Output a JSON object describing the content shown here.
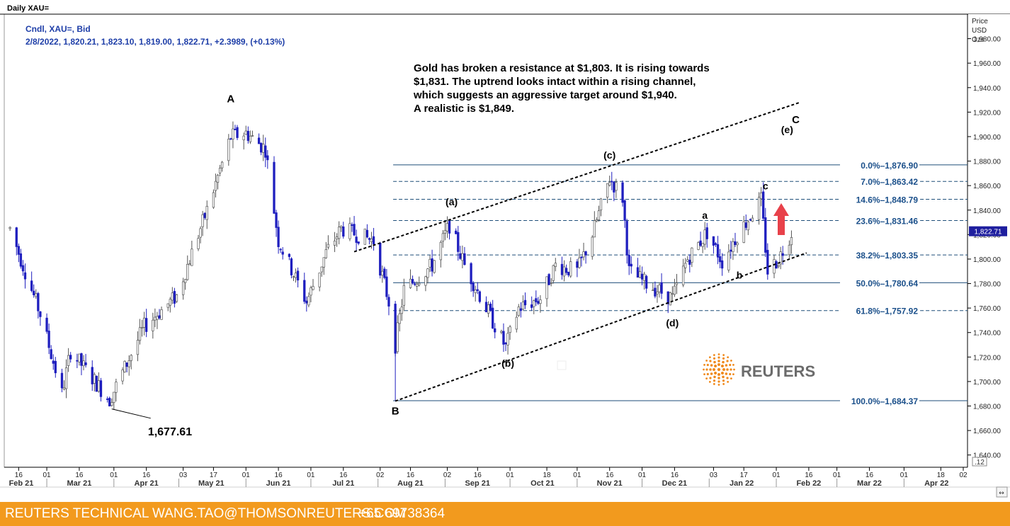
{
  "window_title": "Daily XAU=",
  "instrument_line": "Cndl, XAU=, Bid",
  "ohlc_line": "2/8/2022, 1,820.21, 1,823.10, 1,819.00, 1,822.71, +2.3989, (+0.13%)",
  "commentary": [
    "Gold has broken a resistance at $1,803. It is rising towards",
    "$1,831. The uptrend looks intact within a rising channel,",
    "which suggests an aggressive target around $1,940.",
    "A realistic is $1,849."
  ],
  "price_axis_title": [
    "Price",
    "USD",
    "Ozs"
  ],
  "price_ticks": [
    "1,980.00",
    "1,960.00",
    "1,940.00",
    "1,920.00",
    "1,900.00",
    "1,880.00",
    "1,860.00",
    "1,840.00",
    "1,820.00",
    "1,800.00",
    "1,780.00",
    "1,760.00",
    "1,740.00",
    "1,720.00",
    "1,700.00",
    "1,680.00",
    "1,660.00",
    "1,640.00"
  ],
  "last_price_tag": "1,822.71",
  "x_day_ticks": [
    "16",
    "01",
    "16",
    "01",
    "16",
    "03",
    "17",
    "01",
    "16",
    "01",
    "16",
    "02",
    "16",
    "02",
    "16",
    "01",
    "18",
    "01",
    "16",
    "01",
    "16",
    "03",
    "17",
    "01",
    "16",
    "01",
    "16",
    "01",
    "18",
    "02"
  ],
  "x_month_ticks": [
    "Feb 21",
    "Mar 21",
    "Apr 21",
    "May 21",
    "Jun 21",
    "Jul 21",
    "Aug 21",
    "Sep 21",
    "Oct 21",
    "Nov 21",
    "Dec 21",
    "Jan 22",
    "Feb 22",
    "Mar 22",
    "Apr 22"
  ],
  "corner_label": ".12",
  "footer": {
    "left": "REUTERS TECHNICAL  WANG.TAO@THOMSONREUTERS.COM",
    "phone": "+65 69738364"
  },
  "logo_text": "REUTERS",
  "colors": {
    "candle_down": "#1f1fbf",
    "candle_up": "#555555",
    "fib_line": "#1e4e79",
    "fib_text": "#1a4f8a",
    "arrow": "#e8414a",
    "footer": "#f29a1e",
    "header_text": "#1e3ea8"
  },
  "chart_data": {
    "type": "candlestick",
    "title": "Daily XAU=",
    "ylabel": "Price USD Ozs",
    "ylim": [
      1630,
      2000
    ],
    "x_start": "2021-02-10",
    "x_end": "2022-04-30",
    "fib_levels": [
      {
        "label": "0.0%",
        "value": "1,876.90",
        "price": 1876.9
      },
      {
        "label": "7.0%",
        "value": "1,863.42",
        "price": 1863.42
      },
      {
        "label": "14.6%",
        "value": "1,848.79",
        "price": 1848.79
      },
      {
        "label": "23.6%",
        "value": "1,831.46",
        "price": 1831.46
      },
      {
        "label": "38.2%",
        "value": "1,803.35",
        "price": 1803.35
      },
      {
        "label": "50.0%",
        "value": "1,780.64",
        "price": 1780.64
      },
      {
        "label": "61.8%",
        "value": "1,757.92",
        "price": 1757.92
      },
      {
        "label": "100.0%",
        "value": "1,684.37",
        "price": 1684.37
      }
    ],
    "wave_labels": [
      {
        "text": "A",
        "date": "2021-05-25",
        "price": 1928
      },
      {
        "text": "B",
        "date": "2021-08-09",
        "price": 1673
      },
      {
        "text": "C",
        "date": "2022-02-10",
        "price": 1911
      },
      {
        "text": "(a)",
        "date": "2021-09-04",
        "price": 1844
      },
      {
        "text": "(b)",
        "date": "2021-09-30",
        "price": 1712
      },
      {
        "text": "(c)",
        "date": "2021-11-16",
        "price": 1882
      },
      {
        "text": "(d)",
        "date": "2021-12-15",
        "price": 1745
      },
      {
        "text": "(e)",
        "date": "2022-02-06",
        "price": 1903
      },
      {
        "text": "a",
        "date": "2021-12-30",
        "price": 1833
      },
      {
        "text": "b",
        "date": "2022-01-15",
        "price": 1784
      },
      {
        "text": "c",
        "date": "2022-01-27",
        "price": 1857
      }
    ],
    "price_annotation": {
      "text": "1,677.61",
      "date": "2021-04-01",
      "price": 1663
    },
    "channel_upper": [
      {
        "date": "2021-07-21",
        "price": 1806
      },
      {
        "date": "2022-02-12",
        "price": 1928
      }
    ],
    "channel_lower": [
      {
        "date": "2021-08-09",
        "price": 1684
      },
      {
        "date": "2022-02-15",
        "price": 1805
      }
    ],
    "waypoints": [
      [
        "2021-02-12",
        1825
      ],
      [
        "2021-02-26",
        1755
      ],
      [
        "2021-03-08",
        1690
      ],
      [
        "2021-03-12",
        1725
      ],
      [
        "2021-03-30",
        1685
      ],
      [
        "2021-04-15",
        1745
      ],
      [
        "2021-04-30",
        1770
      ],
      [
        "2021-05-14",
        1840
      ],
      [
        "2021-05-25",
        1900
      ],
      [
        "2021-06-01",
        1903
      ],
      [
        "2021-06-10",
        1890
      ],
      [
        "2021-06-16",
        1815
      ],
      [
        "2021-06-29",
        1765
      ],
      [
        "2021-07-08",
        1805
      ],
      [
        "2021-07-15",
        1825
      ],
      [
        "2021-07-30",
        1815
      ],
      [
        "2021-08-06",
        1765
      ],
      [
        "2021-08-09",
        1730
      ],
      [
        "2021-08-13",
        1775
      ],
      [
        "2021-08-26",
        1795
      ],
      [
        "2021-09-03",
        1828
      ],
      [
        "2021-09-10",
        1795
      ],
      [
        "2021-09-20",
        1760
      ],
      [
        "2021-09-29",
        1728
      ],
      [
        "2021-10-05",
        1760
      ],
      [
        "2021-10-15",
        1768
      ],
      [
        "2021-10-22",
        1795
      ],
      [
        "2021-11-01",
        1790
      ],
      [
        "2021-11-08",
        1820
      ],
      [
        "2021-11-16",
        1866
      ],
      [
        "2021-11-22",
        1850
      ],
      [
        "2021-11-25",
        1790
      ],
      [
        "2021-12-03",
        1780
      ],
      [
        "2021-12-15",
        1768
      ],
      [
        "2021-12-22",
        1800
      ],
      [
        "2021-12-31",
        1822
      ],
      [
        "2022-01-07",
        1798
      ],
      [
        "2022-01-14",
        1820
      ],
      [
        "2022-01-25",
        1848
      ],
      [
        "2022-01-28",
        1790
      ],
      [
        "2022-02-02",
        1800
      ],
      [
        "2022-02-08",
        1822
      ]
    ]
  }
}
